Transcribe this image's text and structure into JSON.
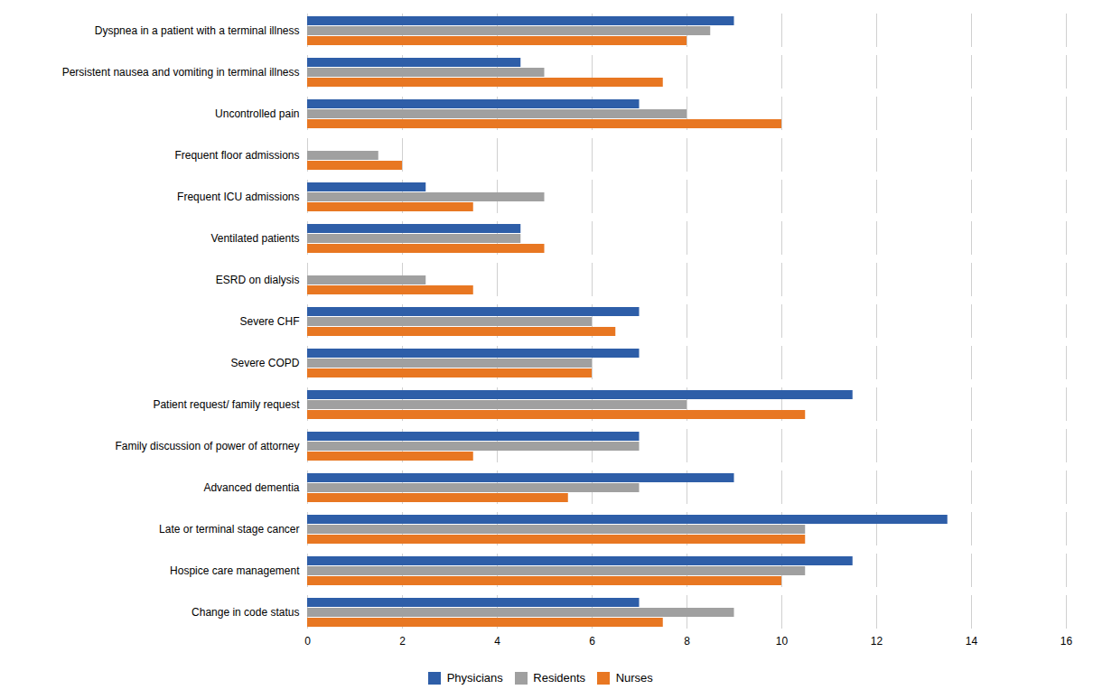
{
  "chart_data": {
    "type": "bar",
    "orientation": "horizontal",
    "categories": [
      "Dyspnea in a patient with a terminal illness",
      "Persistent nausea and vomiting in terminal illness",
      "Uncontrolled pain",
      "Frequent floor admissions",
      "Frequent ICU admissions",
      "Ventilated patients",
      "ESRD on dialysis",
      "Severe CHF",
      "Severe COPD",
      "Patient request/ family request",
      "Family discussion of power of attorney",
      "Advanced dementia",
      "Late or terminal stage cancer",
      "Hospice care management",
      "Change in code status"
    ],
    "series": [
      {
        "name": "Physicians",
        "color": "#2E5EA8",
        "values": [
          9.0,
          4.5,
          7.0,
          0.0,
          2.5,
          4.5,
          0.0,
          7.0,
          7.0,
          11.5,
          7.0,
          9.0,
          13.5,
          11.5,
          7.0
        ]
      },
      {
        "name": "Residents",
        "color": "#A0A0A0",
        "values": [
          8.5,
          5.0,
          8.0,
          1.5,
          5.0,
          4.5,
          2.5,
          6.0,
          6.0,
          8.0,
          7.0,
          7.0,
          10.5,
          10.5,
          9.0
        ]
      },
      {
        "name": "Nurses",
        "color": "#E87722",
        "values": [
          8.0,
          7.5,
          10.0,
          2.0,
          3.5,
          5.0,
          3.5,
          6.5,
          6.0,
          10.5,
          3.5,
          5.5,
          10.5,
          10.0,
          7.5
        ]
      }
    ],
    "xlim": [
      0,
      16
    ],
    "xticks": [
      0,
      2,
      4,
      6,
      8,
      10,
      12,
      14,
      16
    ],
    "grid": true,
    "legend": "bottom"
  }
}
